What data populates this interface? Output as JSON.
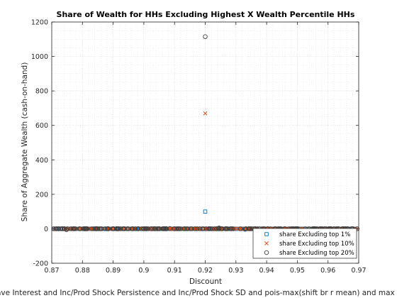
{
  "chart_data": {
    "type": "scatter",
    "title": "Share of Wealth for HHs Excluding Highest X Wealth Percentile HHs",
    "xlabel": "Discount",
    "ylabel": "Share of Aggregate Wealth (cash-on-hand)",
    "bottom_note": "ave Interest and Inc/Prod Shock Persistence and Inc/Prod Shock SD and pois-max(shift br r mean) and max borrow",
    "xlim": [
      0.87,
      0.97
    ],
    "ylim": [
      -200,
      1200
    ],
    "xticks": [
      0.87,
      0.88,
      0.89,
      0.9,
      0.91,
      0.92,
      0.93,
      0.94,
      0.95,
      0.96,
      0.97
    ],
    "xtick_labels": [
      "0.87",
      "0.88",
      "0.89",
      "0.9",
      "0.91",
      "0.92",
      "0.93",
      "0.94",
      "0.95",
      "0.96",
      "0.97"
    ],
    "yticks": [
      -200,
      0,
      200,
      400,
      600,
      800,
      1000,
      1200
    ],
    "ytick_labels": [
      "-200",
      "0",
      "200",
      "400",
      "600",
      "800",
      "1000",
      "1200"
    ],
    "grid": true,
    "minor_grid": true,
    "legend_location": "bottom-right",
    "series": [
      {
        "name": "share Excluding top 1%",
        "marker": "square",
        "color": "#0072BD",
        "points": [
          [
            0.92,
            100
          ]
        ],
        "dense_band": {
          "x_range": [
            0.8705,
            0.9695
          ],
          "y": 0,
          "approx_count": 230
        }
      },
      {
        "name": "share Excluding top 10%",
        "marker": "x",
        "color": "#D95319",
        "points": [
          [
            0.92,
            670
          ]
        ],
        "dense_band": {
          "x_range": [
            0.8705,
            0.9695
          ],
          "y": 0,
          "approx_count": 230
        }
      },
      {
        "name": "share Excluding top 20%",
        "marker": "circle",
        "color": "#404040",
        "points": [
          [
            0.92,
            1115
          ],
          [
            0.8748,
            -5
          ],
          [
            0.9245,
            5
          ],
          [
            0.933,
            -3
          ],
          [
            0.9085,
            2
          ]
        ],
        "dense_band": {
          "x_range": [
            0.8705,
            0.9695
          ],
          "y": 0,
          "approx_count": 230
        }
      }
    ]
  }
}
